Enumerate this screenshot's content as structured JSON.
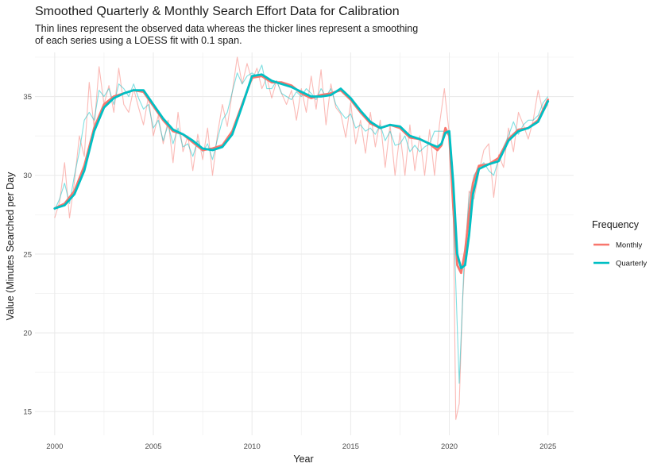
{
  "chart_data": {
    "type": "line",
    "title": "Smoothed Quarterly & Monthly Search Effort Data for Calibration",
    "subtitle_lines": [
      "Thin lines represent the observed data whereas the thicker lines represent a smoothing",
      "of each series using a LOESS fit with 0.1 span."
    ],
    "xlabel": "Year",
    "ylabel": "Value (Minutes Searched per Day",
    "xlim": [
      1999.0,
      2026.3
    ],
    "ylim": [
      13.5,
      37.8
    ],
    "x_ticks": [
      2000,
      2005,
      2010,
      2015,
      2020,
      2025
    ],
    "y_ticks": [
      15,
      20,
      25,
      30,
      35
    ],
    "grid": true,
    "legend": {
      "title": "Frequency",
      "position": "right",
      "entries": [
        "Monthly",
        "Quarterly"
      ]
    },
    "colors": {
      "Monthly": "#F8766D",
      "Quarterly": "#00BFC4"
    },
    "smoothed_series": [
      {
        "name": "Monthly",
        "x": [
          2000,
          2000.5,
          2001,
          2001.5,
          2002,
          2002.5,
          2003,
          2003.5,
          2004,
          2004.5,
          2005,
          2005.5,
          2006,
          2006.5,
          2007,
          2007.5,
          2008,
          2008.5,
          2009,
          2009.5,
          2010,
          2010.5,
          2011,
          2011.5,
          2012,
          2012.5,
          2013,
          2013.5,
          2014,
          2014.5,
          2015,
          2015.5,
          2016,
          2016.5,
          2017,
          2017.5,
          2018,
          2018.5,
          2019,
          2019.4,
          2019.6,
          2019.8,
          2020,
          2020.2,
          2020.4,
          2020.6,
          2020.8,
          2021,
          2021.2,
          2021.5,
          2022,
          2022.5,
          2023,
          2023.5,
          2024,
          2024.5,
          2025
        ],
        "values": [
          27.9,
          28.2,
          29.0,
          30.6,
          33.0,
          34.5,
          35.0,
          35.2,
          35.4,
          35.3,
          34.4,
          33.5,
          32.8,
          32.6,
          32.1,
          31.6,
          31.7,
          31.9,
          32.8,
          34.5,
          36.2,
          36.3,
          35.9,
          35.9,
          35.7,
          35.2,
          34.9,
          35.1,
          35.2,
          35.4,
          34.8,
          34.0,
          33.3,
          33.0,
          33.2,
          33.0,
          32.4,
          32.3,
          32.0,
          31.6,
          31.9,
          33.0,
          32.5,
          28.0,
          24.3,
          23.8,
          25.2,
          27.5,
          29.5,
          30.6,
          30.7,
          31.1,
          32.3,
          32.9,
          33.0,
          33.5,
          34.8
        ]
      },
      {
        "name": "Quarterly",
        "x": [
          2000,
          2000.5,
          2001,
          2001.5,
          2002,
          2002.5,
          2003,
          2003.5,
          2004,
          2004.5,
          2005,
          2005.5,
          2006,
          2006.5,
          2007,
          2007.5,
          2008,
          2008.5,
          2009,
          2009.5,
          2010,
          2010.5,
          2011,
          2011.5,
          2012,
          2012.5,
          2013,
          2013.5,
          2014,
          2014.5,
          2015,
          2015.5,
          2016,
          2016.5,
          2017,
          2017.5,
          2018,
          2018.5,
          2019,
          2019.4,
          2019.6,
          2019.8,
          2020,
          2020.2,
          2020.4,
          2020.6,
          2020.8,
          2021,
          2021.2,
          2021.5,
          2022,
          2022.5,
          2023,
          2023.5,
          2024,
          2024.5,
          2025
        ],
        "values": [
          27.9,
          28.1,
          28.8,
          30.3,
          32.8,
          34.3,
          34.9,
          35.2,
          35.4,
          35.4,
          34.5,
          33.6,
          32.9,
          32.6,
          32.2,
          31.7,
          31.6,
          31.8,
          32.6,
          34.4,
          36.3,
          36.4,
          36.0,
          35.8,
          35.6,
          35.3,
          35.0,
          35.0,
          35.1,
          35.5,
          34.9,
          34.1,
          33.4,
          33.0,
          33.2,
          33.1,
          32.5,
          32.3,
          32.0,
          31.8,
          32.0,
          32.7,
          32.8,
          29.5,
          25.0,
          24.1,
          24.3,
          26.2,
          28.8,
          30.4,
          30.7,
          30.9,
          32.2,
          32.8,
          33.0,
          33.4,
          34.7
        ]
      }
    ],
    "raw_series": [
      {
        "name": "Monthly",
        "x": [
          2000,
          2000.25,
          2000.5,
          2000.75,
          2001,
          2001.25,
          2001.5,
          2001.75,
          2002,
          2002.25,
          2002.5,
          2002.75,
          2003,
          2003.25,
          2003.5,
          2003.75,
          2004,
          2004.25,
          2004.5,
          2004.75,
          2005,
          2005.25,
          2005.5,
          2005.75,
          2006,
          2006.25,
          2006.5,
          2006.75,
          2007,
          2007.25,
          2007.5,
          2007.75,
          2008,
          2008.25,
          2008.5,
          2008.75,
          2009,
          2009.25,
          2009.5,
          2009.75,
          2010,
          2010.25,
          2010.5,
          2010.75,
          2011,
          2011.25,
          2011.5,
          2011.75,
          2012,
          2012.25,
          2012.5,
          2012.75,
          2013,
          2013.25,
          2013.5,
          2013.75,
          2014,
          2014.25,
          2014.5,
          2014.75,
          2015,
          2015.25,
          2015.5,
          2015.75,
          2016,
          2016.25,
          2016.5,
          2016.75,
          2017,
          2017.25,
          2017.5,
          2017.75,
          2018,
          2018.25,
          2018.5,
          2018.75,
          2019,
          2019.25,
          2019.5,
          2019.75,
          2020,
          2020.17,
          2020.33,
          2020.5,
          2020.67,
          2020.83,
          2021,
          2021.25,
          2021.5,
          2021.75,
          2022,
          2022.25,
          2022.5,
          2022.75,
          2023,
          2023.25,
          2023.5,
          2023.75,
          2024,
          2024.25,
          2024.5,
          2024.75,
          2025
        ],
        "values": [
          27.3,
          28.3,
          30.8,
          27.3,
          29.6,
          32.5,
          31.2,
          35.9,
          33.0,
          36.9,
          34.5,
          35.7,
          34.0,
          36.8,
          34.5,
          34.0,
          35.5,
          34.3,
          33.2,
          35.0,
          32.5,
          33.8,
          32.0,
          33.5,
          30.8,
          34.0,
          31.5,
          32.5,
          30.3,
          32.6,
          31.0,
          33.0,
          30.0,
          32.6,
          34.5,
          33.1,
          35.3,
          37.5,
          35.8,
          37.1,
          36.0,
          36.8,
          35.5,
          36.2,
          34.9,
          36.0,
          35.2,
          34.5,
          35.4,
          33.5,
          35.5,
          34.0,
          36.3,
          34.2,
          36.7,
          33.2,
          35.8,
          34.3,
          33.9,
          32.4,
          34.6,
          32.0,
          33.5,
          31.4,
          34.0,
          31.8,
          33.5,
          30.5,
          33.2,
          30.0,
          32.7,
          30.0,
          33.2,
          30.3,
          32.5,
          30.0,
          32.9,
          30.0,
          33.2,
          35.5,
          32.6,
          30.5,
          14.5,
          15.5,
          22.0,
          25.5,
          29.0,
          28.5,
          30.2,
          31.6,
          32.0,
          28.6,
          31.3,
          30.5,
          33.0,
          31.5,
          34.0,
          33.2,
          32.3,
          33.5,
          35.4,
          34.0,
          34.5
        ]
      },
      {
        "name": "Quarterly",
        "x": [
          2000,
          2000.25,
          2000.5,
          2000.75,
          2001,
          2001.25,
          2001.5,
          2001.75,
          2002,
          2002.25,
          2002.5,
          2002.75,
          2003,
          2003.25,
          2003.5,
          2003.75,
          2004,
          2004.25,
          2004.5,
          2004.75,
          2005,
          2005.25,
          2005.5,
          2005.75,
          2006,
          2006.25,
          2006.5,
          2006.75,
          2007,
          2007.25,
          2007.5,
          2007.75,
          2008,
          2008.25,
          2008.5,
          2008.75,
          2009,
          2009.25,
          2009.5,
          2009.75,
          2010,
          2010.25,
          2010.5,
          2010.75,
          2011,
          2011.25,
          2011.5,
          2011.75,
          2012,
          2012.25,
          2012.5,
          2012.75,
          2013,
          2013.25,
          2013.5,
          2013.75,
          2014,
          2014.25,
          2014.5,
          2014.75,
          2015,
          2015.25,
          2015.5,
          2015.75,
          2016,
          2016.25,
          2016.5,
          2016.75,
          2017,
          2017.25,
          2017.5,
          2017.75,
          2018,
          2018.25,
          2018.5,
          2018.75,
          2019,
          2019.25,
          2019.5,
          2019.75,
          2020,
          2020.25,
          2020.5,
          2020.75,
          2021,
          2021.25,
          2021.5,
          2021.75,
          2022,
          2022.25,
          2022.5,
          2022.75,
          2023,
          2023.25,
          2023.5,
          2023.75,
          2024,
          2024.25,
          2024.5,
          2024.75,
          2025
        ],
        "values": [
          27.8,
          28.5,
          29.5,
          28.2,
          30.0,
          31.5,
          33.5,
          34.0,
          33.5,
          35.4,
          35.0,
          35.5,
          34.5,
          35.8,
          35.5,
          35.0,
          35.8,
          34.9,
          34.2,
          34.5,
          33.0,
          33.5,
          32.2,
          33.2,
          32.0,
          33.0,
          31.8,
          32.0,
          31.2,
          32.2,
          31.5,
          32.0,
          31.0,
          32.3,
          33.5,
          34.0,
          35.3,
          36.5,
          35.8,
          36.3,
          36.5,
          36.3,
          37.0,
          35.5,
          35.5,
          36.0,
          35.2,
          35.0,
          34.8,
          35.3,
          35.0,
          35.5,
          35.2,
          34.8,
          35.5,
          35.0,
          35.5,
          34.5,
          34.0,
          33.6,
          33.9,
          33.0,
          33.2,
          32.8,
          33.0,
          32.6,
          33.2,
          32.2,
          32.8,
          31.9,
          32.0,
          32.5,
          31.5,
          31.9,
          31.5,
          31.8,
          32.0,
          32.8,
          32.8,
          32.8,
          32.5,
          26.0,
          16.8,
          24.5,
          28.5,
          30.0,
          30.5,
          30.8,
          30.3,
          30.0,
          31.0,
          31.8,
          32.5,
          33.4,
          32.6,
          33.2,
          33.5,
          33.5,
          33.8,
          34.6,
          35.0
        ]
      }
    ]
  }
}
